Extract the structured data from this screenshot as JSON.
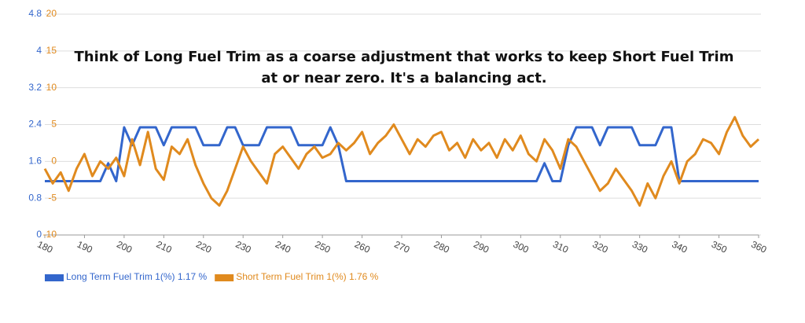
{
  "chart_data": {
    "type": "line",
    "annotations": [
      "Think of Long Fuel Trim as a coarse adjustment that works to keep Short Fuel Trim",
      "at or near zero. It's a balancing act."
    ],
    "x": [
      180,
      182,
      184,
      186,
      188,
      190,
      192,
      194,
      196,
      198,
      200,
      202,
      204,
      206,
      208,
      210,
      212,
      214,
      216,
      218,
      220,
      222,
      224,
      226,
      228,
      230,
      232,
      234,
      236,
      238,
      240,
      242,
      244,
      246,
      248,
      250,
      252,
      254,
      256,
      258,
      260,
      262,
      264,
      266,
      268,
      270,
      272,
      274,
      276,
      278,
      280,
      282,
      284,
      286,
      288,
      290,
      292,
      294,
      296,
      298,
      300,
      302,
      304,
      306,
      308,
      310,
      312,
      314,
      316,
      318,
      320,
      322,
      324,
      326,
      328,
      330,
      332,
      334,
      336,
      338,
      340,
      342,
      344,
      346,
      348,
      350,
      352,
      354,
      356,
      358,
      360
    ],
    "series": [
      {
        "name": "Long Term Fuel Trim 1(%) 1.17 %",
        "color": "#3366cc",
        "axis": "y",
        "values": [
          1.17,
          1.17,
          1.17,
          1.17,
          1.17,
          1.17,
          1.17,
          1.17,
          1.56,
          1.17,
          2.34,
          1.95,
          2.34,
          2.34,
          2.34,
          1.95,
          2.34,
          2.34,
          2.34,
          2.34,
          1.95,
          1.95,
          1.95,
          2.34,
          2.34,
          1.95,
          1.95,
          1.95,
          2.34,
          2.34,
          2.34,
          2.34,
          1.95,
          1.95,
          1.95,
          1.95,
          2.34,
          1.95,
          1.17,
          1.17,
          1.17,
          1.17,
          1.17,
          1.17,
          1.17,
          1.17,
          1.17,
          1.17,
          1.17,
          1.17,
          1.17,
          1.17,
          1.17,
          1.17,
          1.17,
          1.17,
          1.17,
          1.17,
          1.17,
          1.17,
          1.17,
          1.17,
          1.17,
          1.56,
          1.17,
          1.17,
          1.95,
          2.34,
          2.34,
          2.34,
          1.95,
          2.34,
          2.34,
          2.34,
          2.34,
          1.95,
          1.95,
          1.95,
          2.34,
          2.34,
          1.17,
          1.17,
          1.17,
          1.17,
          1.17,
          1.17,
          1.17,
          1.17,
          1.17,
          1.17,
          1.17
        ]
      },
      {
        "name": "Short Term Fuel Trim 1(%) 1.76 %",
        "color": "#e08a1e",
        "axis": "y2",
        "values": [
          -1,
          -3,
          -1.5,
          -4,
          -1,
          1,
          -2,
          0,
          -1,
          0.5,
          -2,
          3,
          -0.5,
          4,
          -1,
          -2.5,
          2,
          1,
          3,
          -0.5,
          -3,
          -5,
          -6,
          -4,
          -1,
          2,
          0,
          -1.5,
          -3,
          1,
          2,
          0.5,
          -1,
          1,
          2,
          0.5,
          1,
          2.5,
          1.5,
          2.5,
          4,
          1,
          2.5,
          3.5,
          5,
          3,
          1,
          3,
          2,
          3.5,
          4,
          1.5,
          2.5,
          0.5,
          3,
          1.5,
          2.5,
          0.5,
          3,
          1.5,
          3.5,
          1,
          0,
          3,
          1.5,
          -1,
          3,
          2,
          0,
          -2,
          -4,
          -3,
          -1,
          -2.5,
          -4,
          -6,
          -3,
          -5,
          -2,
          0,
          -3,
          0,
          1,
          3,
          2.5,
          1,
          4,
          6,
          3.5,
          2,
          3
        ]
      }
    ],
    "xlim": [
      180,
      360
    ],
    "xticks": [
      180,
      190,
      200,
      210,
      220,
      230,
      240,
      250,
      260,
      270,
      280,
      290,
      300,
      310,
      320,
      330,
      340,
      350,
      360
    ],
    "ylim": [
      0,
      4.8
    ],
    "yticks": [
      0,
      0.8,
      1.6,
      2.4,
      3.2,
      4,
      4.8
    ],
    "y2lim": [
      -10,
      20
    ],
    "y2ticks": [
      -10,
      -5,
      0,
      5,
      10,
      15,
      20
    ],
    "grid": true
  }
}
